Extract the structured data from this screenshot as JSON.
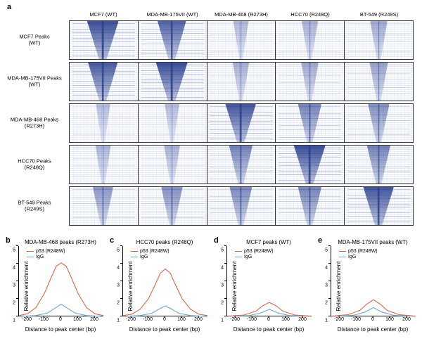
{
  "colors": {
    "heatmap_dark": "#2a3f8f",
    "heatmap_light": "#e8ecf7",
    "p53_line": "#e06648",
    "igg_line": "#6fa8c9",
    "axis": "#000000",
    "bg": "#ffffff"
  },
  "panel_a": {
    "label": "a",
    "col_headers": [
      "MCF7 (WT)",
      "MDA-MB-175VII (WT)",
      "MDA-MB-468 (R273H)",
      "HCC70 (R248Q)",
      "BT-549 (R249S)"
    ],
    "row_labels": [
      "MCF7 Peaks\n(WT)",
      "MDA-MB-175VII Peaks\n(WT)",
      "MDA-MB-468 Peaks\n(R273H)",
      "HCC70 Peaks\n(R248Q)",
      "BT-549 Peaks\n(R249S)"
    ],
    "intensity": [
      [
        0.95,
        0.8,
        0.15,
        0.2,
        0.25
      ],
      [
        0.85,
        0.95,
        0.2,
        0.25,
        0.3
      ],
      [
        0.1,
        0.12,
        0.9,
        0.55,
        0.45
      ],
      [
        0.15,
        0.18,
        0.55,
        0.95,
        0.55
      ],
      [
        0.4,
        0.45,
        0.5,
        0.55,
        0.9
      ]
    ]
  },
  "line_charts": {
    "xlim": [
      -250,
      250
    ],
    "xticks": [
      -200,
      -100,
      0,
      100,
      200
    ],
    "ylim": [
      1,
      5
    ],
    "yticks": [
      1,
      2,
      3,
      4,
      5
    ],
    "ylabel": "Relative enrichment",
    "xlabel": "Distance to peak center (bp)",
    "legend": [
      {
        "label": "p53 (R248W)",
        "color": "#e06648"
      },
      {
        "label": "IgG",
        "color": "#6fa8c9"
      }
    ],
    "panels": [
      {
        "id": "b",
        "title": "MDA-MB-468 peaks (R273H)",
        "p53": [
          [
            -250,
            1.05
          ],
          [
            -200,
            1.15
          ],
          [
            -150,
            1.5
          ],
          [
            -100,
            2.3
          ],
          [
            -60,
            3.2
          ],
          [
            -30,
            3.85
          ],
          [
            0,
            4.05
          ],
          [
            30,
            3.85
          ],
          [
            60,
            3.2
          ],
          [
            100,
            2.3
          ],
          [
            150,
            1.5
          ],
          [
            200,
            1.15
          ],
          [
            250,
            1.05
          ]
        ],
        "igg": [
          [
            -250,
            1.0
          ],
          [
            -150,
            1.05
          ],
          [
            -80,
            1.2
          ],
          [
            -40,
            1.45
          ],
          [
            0,
            1.7
          ],
          [
            40,
            1.45
          ],
          [
            80,
            1.2
          ],
          [
            150,
            1.05
          ],
          [
            250,
            1.0
          ]
        ]
      },
      {
        "id": "c",
        "title": "HCC70 peaks (R248Q)",
        "p53": [
          [
            -250,
            1.05
          ],
          [
            -200,
            1.12
          ],
          [
            -150,
            1.4
          ],
          [
            -100,
            2.0
          ],
          [
            -60,
            2.8
          ],
          [
            -30,
            3.45
          ],
          [
            0,
            3.7
          ],
          [
            30,
            3.45
          ],
          [
            60,
            2.8
          ],
          [
            100,
            2.0
          ],
          [
            150,
            1.4
          ],
          [
            200,
            1.12
          ],
          [
            250,
            1.05
          ]
        ],
        "igg": [
          [
            -250,
            1.0
          ],
          [
            -150,
            1.05
          ],
          [
            -80,
            1.18
          ],
          [
            -40,
            1.4
          ],
          [
            0,
            1.6
          ],
          [
            40,
            1.4
          ],
          [
            80,
            1.18
          ],
          [
            150,
            1.05
          ],
          [
            250,
            1.0
          ]
        ]
      },
      {
        "id": "d",
        "title": "MCF7 peaks (WT)",
        "p53": [
          [
            -250,
            1.02
          ],
          [
            -150,
            1.08
          ],
          [
            -80,
            1.3
          ],
          [
            -40,
            1.6
          ],
          [
            0,
            1.8
          ],
          [
            40,
            1.6
          ],
          [
            80,
            1.3
          ],
          [
            150,
            1.08
          ],
          [
            250,
            1.02
          ]
        ],
        "igg": [
          [
            -250,
            1.0
          ],
          [
            -120,
            1.05
          ],
          [
            -50,
            1.2
          ],
          [
            0,
            1.4
          ],
          [
            50,
            1.2
          ],
          [
            120,
            1.05
          ],
          [
            250,
            1.0
          ]
        ]
      },
      {
        "id": "e",
        "title": "MDA-MB-175VII peaks (WT)",
        "p53": [
          [
            -250,
            1.02
          ],
          [
            -150,
            1.1
          ],
          [
            -80,
            1.35
          ],
          [
            -40,
            1.7
          ],
          [
            0,
            1.95
          ],
          [
            40,
            1.7
          ],
          [
            80,
            1.35
          ],
          [
            150,
            1.1
          ],
          [
            250,
            1.02
          ]
        ],
        "igg": [
          [
            -250,
            1.0
          ],
          [
            -120,
            1.06
          ],
          [
            -50,
            1.25
          ],
          [
            0,
            1.5
          ],
          [
            50,
            1.25
          ],
          [
            120,
            1.06
          ],
          [
            250,
            1.0
          ]
        ]
      }
    ]
  }
}
